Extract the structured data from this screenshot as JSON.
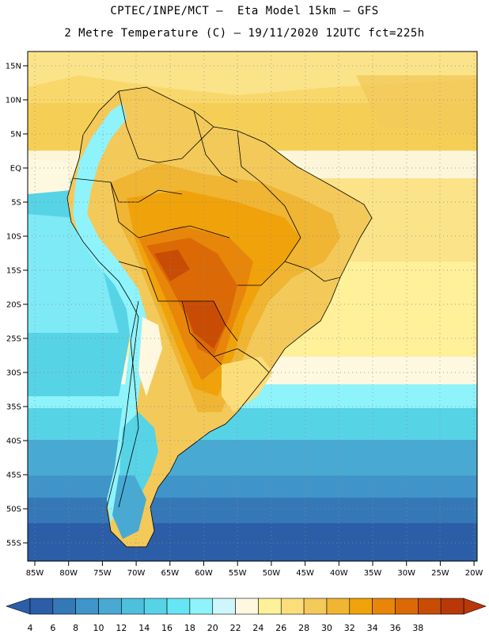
{
  "header": {
    "title_line1": "CPTEC/INPE/MCT –  Eta Model 15km – GFS",
    "title_line2": "2 Metre Temperature (C) – 19/11/2020 12UTC fct=225h"
  },
  "map": {
    "lat_ticks": [
      "15N",
      "10N",
      "5N",
      "EQ",
      "5S",
      "10S",
      "15S",
      "20S",
      "25S",
      "30S",
      "35S",
      "40S",
      "45S",
      "50S",
      "55S"
    ],
    "lon_ticks": [
      "85W",
      "80W",
      "75W",
      "70W",
      "65W",
      "60W",
      "55W",
      "50W",
      "45W",
      "40W",
      "35W",
      "30W",
      "25W",
      "20W"
    ],
    "gridlines": "dotted"
  },
  "colorbar": {
    "labels": [
      "4",
      "6",
      "8",
      "10",
      "12",
      "14",
      "16",
      "18",
      "20",
      "22",
      "24",
      "26",
      "28",
      "30",
      "32",
      "34",
      "36",
      "38"
    ],
    "colors": [
      "#2c5ea8",
      "#3578b8",
      "#3f95c9",
      "#48aad2",
      "#4cc0dc",
      "#57d3e6",
      "#66e6f3",
      "#8ff3fb",
      "#cff5fd",
      "#fdf8df",
      "#fff09a",
      "#fbde7a",
      "#f3c95a",
      "#efb533",
      "#f0a20a",
      "#e8860a",
      "#db6a06",
      "#c94c04",
      "#b8380a"
    ],
    "left_arrow_color": "#2c5ea8",
    "right_arrow_color": "#b8380a"
  }
}
